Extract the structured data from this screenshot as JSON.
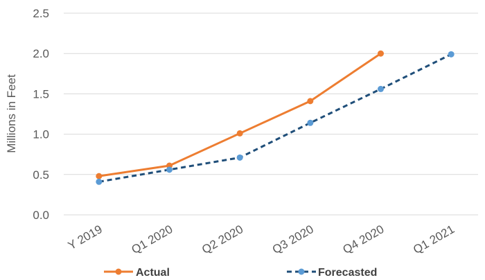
{
  "chart_data": {
    "type": "line",
    "categories": [
      "Y 2019",
      "Q1 2020",
      "Q2 2020",
      "Q3 2020",
      "Q4 2020",
      "Q1 2021"
    ],
    "y_ticks": [
      "0.0",
      "0.5",
      "1.0",
      "1.5",
      "2.0",
      "2.5"
    ],
    "ylabel": "Millions in Feet",
    "ylim": [
      0,
      2.5
    ],
    "grid": true,
    "legend_position": "bottom",
    "series": [
      {
        "name": "Actual",
        "values": [
          0.48,
          0.61,
          1.01,
          1.41,
          2.0,
          null
        ],
        "color": "#ED7D31",
        "style": "solid"
      },
      {
        "name": "Forecasted",
        "values": [
          0.41,
          0.56,
          0.71,
          1.14,
          1.56,
          1.99
        ],
        "color": "#1F4E79",
        "marker_color": "#5B9BD5",
        "style": "dashed"
      }
    ]
  }
}
